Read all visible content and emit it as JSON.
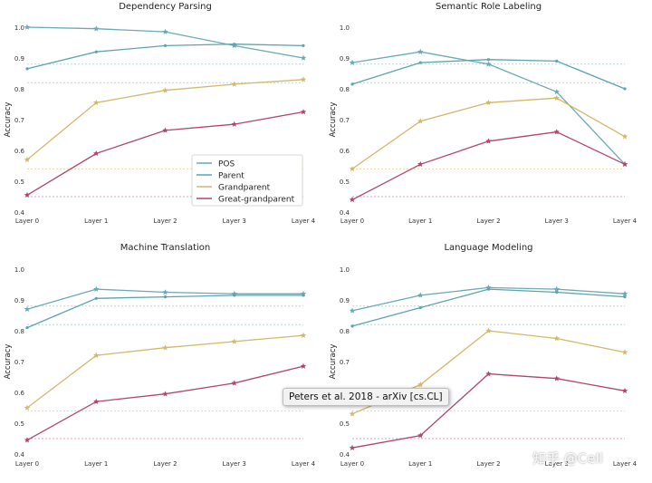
{
  "colors": {
    "POS": "#6aa9b5",
    "Parent": "#5da3ae",
    "Grandparent": "#d2b86a",
    "Great-grandparent": "#b0466b",
    "hline_teal": "#b9d9dd",
    "hline_gold": "#ead79c",
    "hline_red": "#e1a3b4"
  },
  "chart_data": [
    {
      "type": "line",
      "title": "Dependency Parsing",
      "ylabel": "Accuracy",
      "categories": [
        "Layer 0",
        "Layer 1",
        "Layer 2",
        "Layer 3",
        "Layer 4"
      ],
      "ylim": [
        0.4,
        1.0
      ],
      "yticks": [
        "0.4",
        "0.5",
        "0.6",
        "0.7",
        "0.8",
        "0.9",
        "1.0"
      ],
      "hlines": [
        0.88,
        0.82,
        0.54,
        0.45
      ],
      "legend": "center-right",
      "series": [
        {
          "name": "POS",
          "values": [
            1.0,
            0.995,
            0.985,
            0.94,
            0.9
          ]
        },
        {
          "name": "Parent",
          "values": [
            0.865,
            0.92,
            0.94,
            0.945,
            0.94
          ]
        },
        {
          "name": "Grandparent",
          "values": [
            0.57,
            0.755,
            0.795,
            0.815,
            0.83
          ]
        },
        {
          "name": "Great-grandparent",
          "values": [
            0.455,
            0.59,
            0.665,
            0.685,
            0.725
          ]
        }
      ]
    },
    {
      "type": "line",
      "title": "Semantic Role Labeling",
      "ylabel": "Accuracy",
      "categories": [
        "Layer 0",
        "Layer 1",
        "Layer 2",
        "Layer 3",
        "Layer 4"
      ],
      "ylim": [
        0.4,
        1.0
      ],
      "yticks": [
        "0.4",
        "0.5",
        "0.6",
        "0.7",
        "0.8",
        "0.9",
        "1.0"
      ],
      "hlines": [
        0.88,
        0.82,
        0.54,
        0.45
      ],
      "series": [
        {
          "name": "POS",
          "values": [
            0.885,
            0.92,
            0.88,
            0.79,
            0.555
          ]
        },
        {
          "name": "Parent",
          "values": [
            0.815,
            0.885,
            0.895,
            0.89,
            0.8
          ]
        },
        {
          "name": "Grandparent",
          "values": [
            0.54,
            0.695,
            0.755,
            0.77,
            0.645
          ]
        },
        {
          "name": "Great-grandparent",
          "values": [
            0.44,
            0.555,
            0.63,
            0.66,
            0.555
          ]
        }
      ]
    },
    {
      "type": "line",
      "title": "Machine Translation",
      "ylabel": "Accuracy",
      "categories": [
        "Layer 0",
        "Layer 1",
        "Layer 2",
        "Layer 3",
        "Layer 4"
      ],
      "ylim": [
        0.4,
        1.0
      ],
      "yticks": [
        "0.4",
        "0.5",
        "0.6",
        "0.7",
        "0.8",
        "0.9",
        "1.0"
      ],
      "hlines": [
        0.88,
        0.82,
        0.54,
        0.45
      ],
      "series": [
        {
          "name": "POS",
          "values": [
            0.87,
            0.935,
            0.925,
            0.92,
            0.92
          ]
        },
        {
          "name": "Parent",
          "values": [
            0.81,
            0.905,
            0.91,
            0.915,
            0.915
          ]
        },
        {
          "name": "Grandparent",
          "values": [
            0.55,
            0.72,
            0.745,
            0.765,
            0.785
          ]
        },
        {
          "name": "Great-grandparent",
          "values": [
            0.445,
            0.57,
            0.595,
            0.63,
            0.685
          ]
        }
      ]
    },
    {
      "type": "line",
      "title": "Language Modeling",
      "ylabel": "Accuracy",
      "categories": [
        "Layer 0",
        "Layer 1",
        "Layer 2",
        "Layer 3",
        "Layer 4"
      ],
      "ylim": [
        0.4,
        1.0
      ],
      "yticks": [
        "0.4",
        "0.5",
        "0.6",
        "0.7",
        "0.8",
        "0.9",
        "1.0"
      ],
      "hlines": [
        0.88,
        0.82,
        0.54,
        0.45
      ],
      "series": [
        {
          "name": "POS",
          "values": [
            0.865,
            0.915,
            0.94,
            0.935,
            0.92
          ]
        },
        {
          "name": "Parent",
          "values": [
            0.815,
            0.875,
            0.935,
            0.925,
            0.91
          ]
        },
        {
          "name": "Grandparent",
          "values": [
            0.53,
            0.625,
            0.8,
            0.775,
            0.73
          ]
        },
        {
          "name": "Great-grandparent",
          "values": [
            0.42,
            0.46,
            0.66,
            0.645,
            0.605
          ]
        }
      ]
    }
  ],
  "tooltip": "Peters et al. 2018 - arXiv [cs.CL]",
  "watermark": "知乎 @Cell"
}
